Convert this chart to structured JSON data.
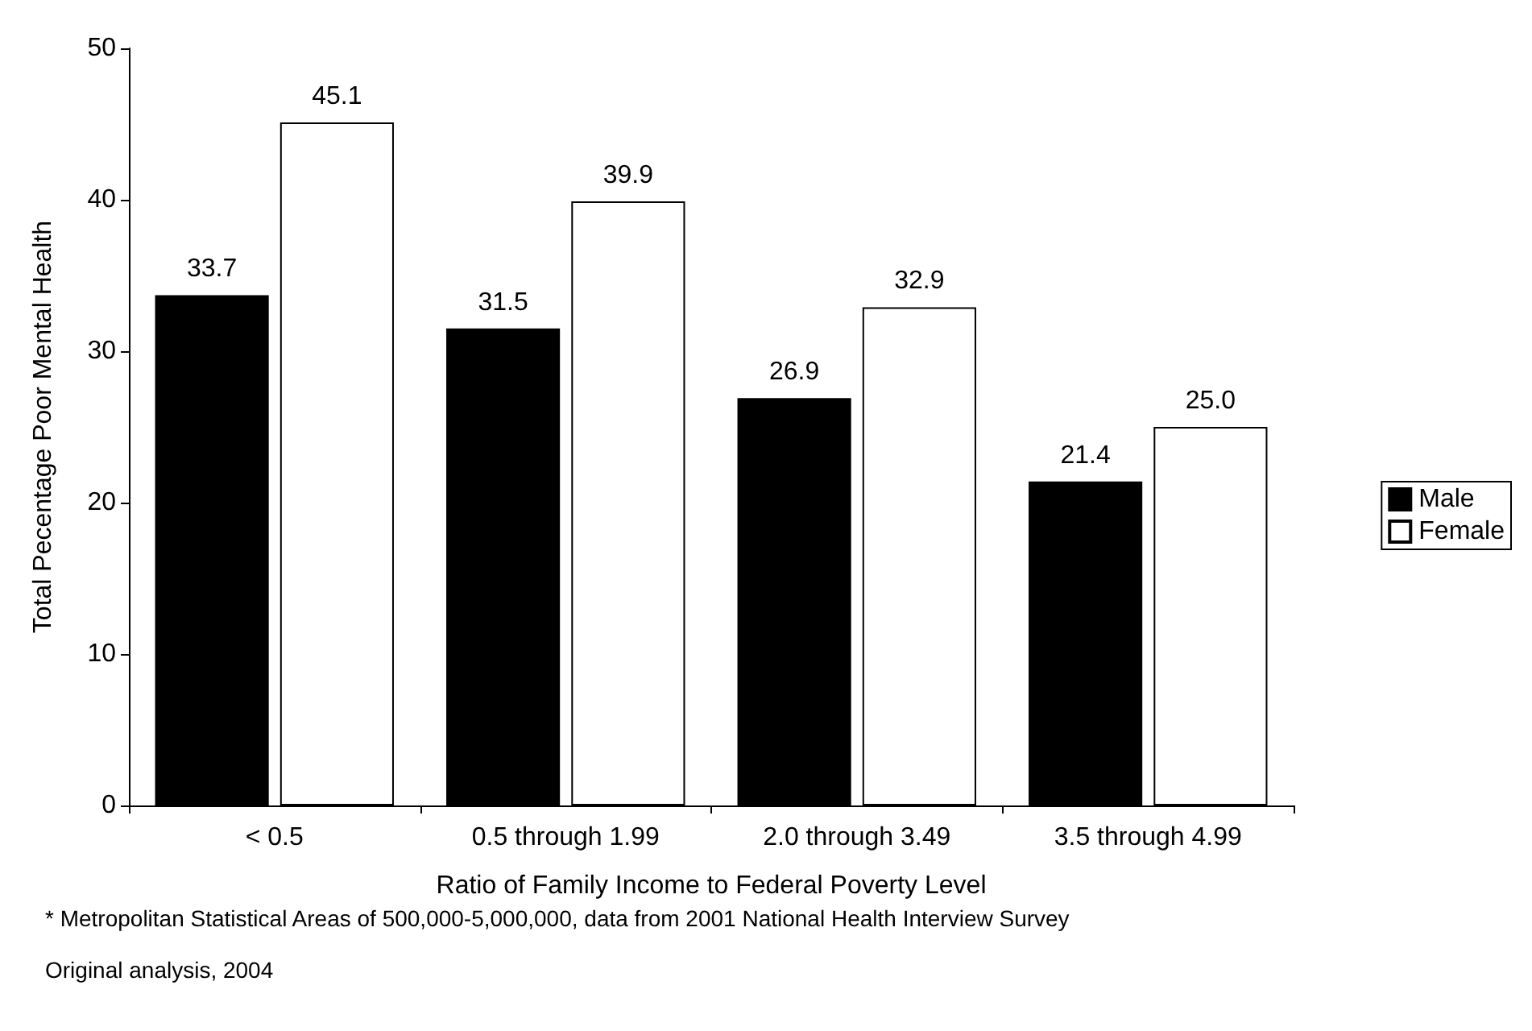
{
  "chart_data": {
    "type": "bar",
    "xlabel": "Ratio of Family Income to Federal Poverty Level",
    "ylabel": "Total Pecentage Poor Mental Health",
    "categories": [
      "< 0.5",
      "0.5 through 1.99",
      "2.0 through 3.49",
      "3.5 through 4.99"
    ],
    "series": [
      {
        "name": "Male",
        "color": "#000000",
        "values": [
          33.7,
          31.5,
          26.9,
          21.4
        ],
        "value_labels": [
          "33.7",
          "31.5",
          "26.9",
          "21.4"
        ]
      },
      {
        "name": "Female",
        "color": "#ffffff",
        "values": [
          45.1,
          39.9,
          32.9,
          25.0
        ],
        "value_labels": [
          "45.1",
          "39.9",
          "32.9",
          "25.0"
        ]
      }
    ],
    "ylim": [
      0,
      50
    ],
    "yticks": [
      0,
      10,
      20,
      30,
      40,
      50
    ],
    "grid": false,
    "legend": "right",
    "annotations": [
      "* Metropolitan Statistical Areas of 500,000-5,000,000, data from 2001 National Health Interview Survey",
      "Original analysis, 2004"
    ]
  }
}
